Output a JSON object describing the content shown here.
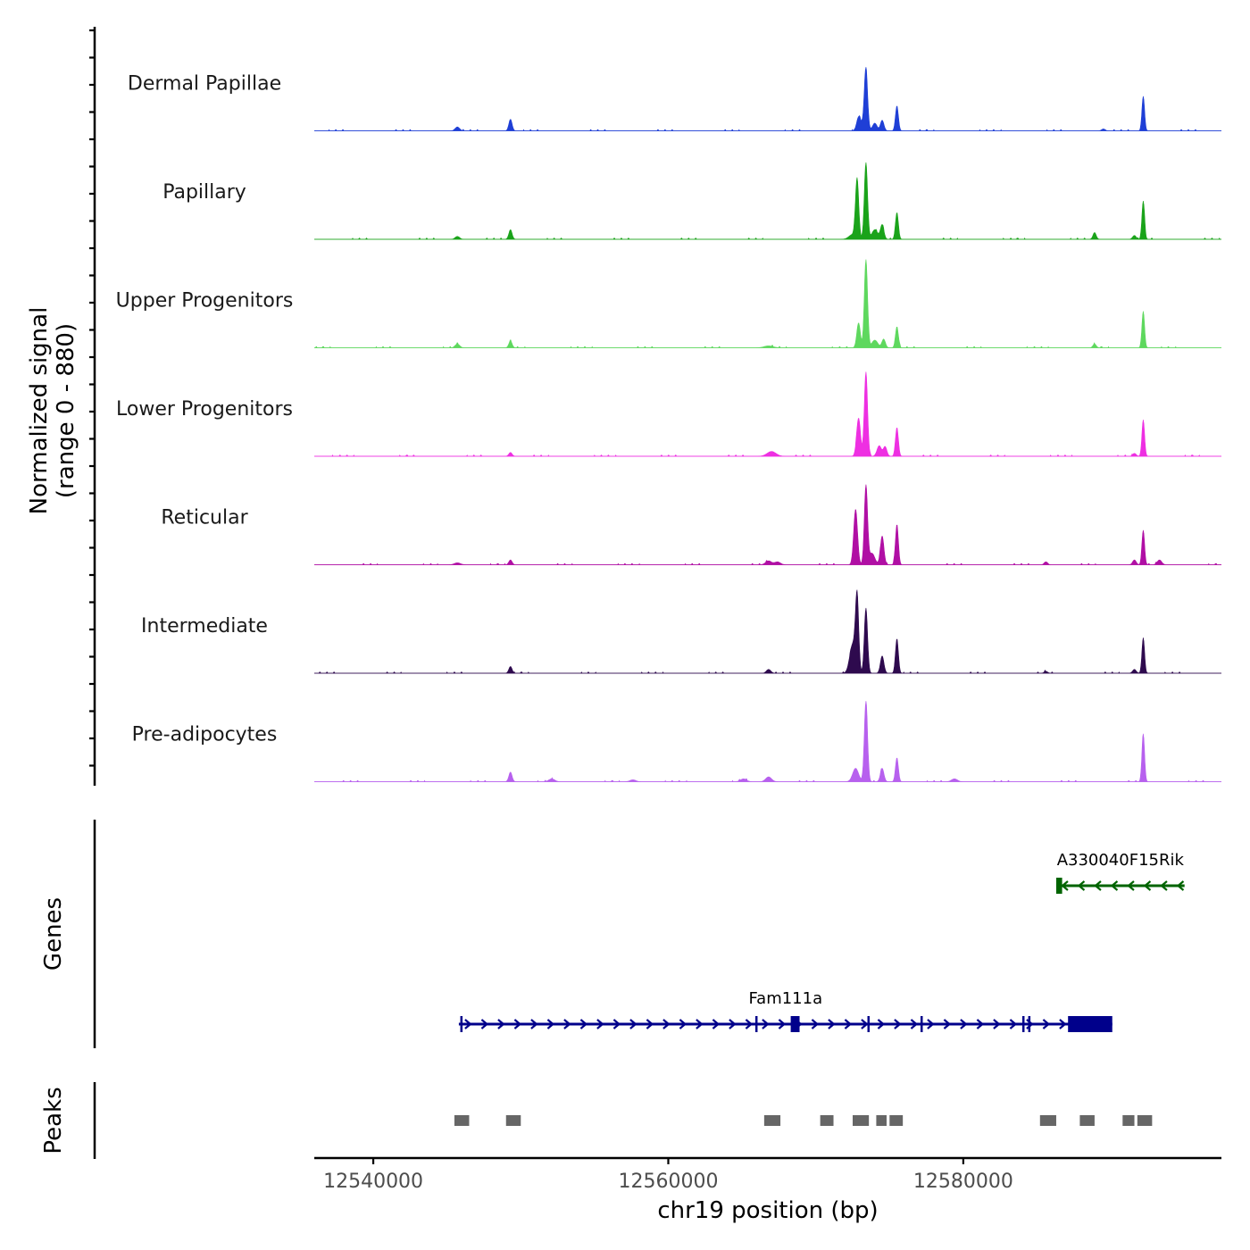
{
  "chart_data": {
    "type": "coverage",
    "y_axis_title_line1": "Normalized signal",
    "y_axis_title_line2": "(range 0 - 880)",
    "y_range": [
      0,
      880
    ],
    "x_axis_title": "chr19 position (bp)",
    "x_range": [
      12536000,
      12597500
    ],
    "x_ticks": [
      12540000,
      12560000,
      12580000
    ],
    "x_tick_labels": [
      "12540000",
      "12560000",
      "12580000"
    ],
    "tracks": [
      {
        "name": "Dermal Papillae",
        "color": "#1f3fd6",
        "peaks": [
          [
            12545700,
            4,
            150
          ],
          [
            12549300,
            12,
            110
          ],
          [
            12572900,
            12,
            130
          ],
          [
            12573200,
            6,
            250
          ],
          [
            12573400,
            62,
            110
          ],
          [
            12574000,
            8,
            150
          ],
          [
            12574500,
            11,
            120
          ],
          [
            12575500,
            26,
            100
          ],
          [
            12592200,
            36,
            90
          ],
          [
            12589500,
            2,
            120
          ]
        ]
      },
      {
        "name": "Papillary",
        "color": "#1aa31a",
        "peaks": [
          [
            12545700,
            3,
            150
          ],
          [
            12549300,
            10,
            110
          ],
          [
            12572500,
            5,
            250
          ],
          [
            12572800,
            62,
            110
          ],
          [
            12573400,
            80,
            110
          ],
          [
            12574000,
            10,
            200
          ],
          [
            12574500,
            15,
            120
          ],
          [
            12575500,
            28,
            100
          ],
          [
            12588900,
            7,
            110
          ],
          [
            12591600,
            4,
            120
          ],
          [
            12592200,
            40,
            90
          ]
        ]
      },
      {
        "name": "Upper Progenitors",
        "color": "#5ed85e",
        "peaks": [
          [
            12545700,
            4,
            150
          ],
          [
            12549300,
            7,
            110
          ],
          [
            12566800,
            2,
            300
          ],
          [
            12572900,
            26,
            120
          ],
          [
            12573400,
            92,
            110
          ],
          [
            12574000,
            8,
            200
          ],
          [
            12574600,
            9,
            120
          ],
          [
            12575500,
            22,
            100
          ],
          [
            12588900,
            4,
            110
          ],
          [
            12592200,
            38,
            90
          ]
        ]
      },
      {
        "name": "Lower Progenitors",
        "color": "#ee2fe2",
        "peaks": [
          [
            12549300,
            4,
            110
          ],
          [
            12567000,
            5,
            300
          ],
          [
            12572900,
            40,
            130
          ],
          [
            12573400,
            88,
            110
          ],
          [
            12574300,
            11,
            150
          ],
          [
            12574700,
            10,
            120
          ],
          [
            12575500,
            30,
            100
          ],
          [
            12592200,
            38,
            90
          ],
          [
            12591600,
            3,
            120
          ]
        ]
      },
      {
        "name": "Reticular",
        "color": "#b00fa4",
        "peaks": [
          [
            12545700,
            2,
            200
          ],
          [
            12549300,
            5,
            110
          ],
          [
            12566800,
            4,
            200
          ],
          [
            12567400,
            3,
            200
          ],
          [
            12572700,
            58,
            130
          ],
          [
            12573400,
            82,
            110
          ],
          [
            12573800,
            12,
            200
          ],
          [
            12574500,
            30,
            120
          ],
          [
            12575500,
            42,
            100
          ],
          [
            12585600,
            3,
            120
          ],
          [
            12591600,
            5,
            120
          ],
          [
            12592200,
            36,
            90
          ],
          [
            12593300,
            5,
            150
          ]
        ]
      },
      {
        "name": "Intermediate",
        "color": "#2e0a4e",
        "peaks": [
          [
            12549300,
            7,
            110
          ],
          [
            12566800,
            4,
            150
          ],
          [
            12572500,
            30,
            200
          ],
          [
            12572800,
            76,
            110
          ],
          [
            12573400,
            68,
            110
          ],
          [
            12574500,
            18,
            120
          ],
          [
            12575500,
            36,
            100
          ],
          [
            12585600,
            2,
            120
          ],
          [
            12591600,
            4,
            120
          ],
          [
            12592200,
            37,
            90
          ]
        ]
      },
      {
        "name": "Pre-adipocytes",
        "color": "#b760ee",
        "peaks": [
          [
            12549300,
            10,
            110
          ],
          [
            12552100,
            3,
            200
          ],
          [
            12557600,
            2,
            200
          ],
          [
            12565100,
            3,
            200
          ],
          [
            12566800,
            5,
            200
          ],
          [
            12572700,
            14,
            200
          ],
          [
            12573400,
            84,
            110
          ],
          [
            12574500,
            14,
            120
          ],
          [
            12575500,
            25,
            100
          ],
          [
            12579400,
            3,
            200
          ],
          [
            12592200,
            50,
            90
          ]
        ]
      }
    ],
    "genes_title": "Genes",
    "genes": [
      {
        "name": "A330040F15Rik",
        "strand": "-",
        "color": "#006400",
        "start": 12586300,
        "end": 12595000,
        "exons": [
          [
            12586300,
            12586700
          ]
        ]
      },
      {
        "name": "Fam111a",
        "strand": "+",
        "color": "#00008b",
        "start": 12545800,
        "end": 12590100,
        "exons": [
          [
            12545900,
            12546000
          ],
          [
            12565900,
            12565950
          ],
          [
            12568300,
            12568900
          ],
          [
            12573500,
            12573550
          ],
          [
            12577100,
            12577150
          ],
          [
            12584000,
            12584080
          ],
          [
            12584400,
            12584450
          ],
          [
            12587100,
            12590100
          ]
        ]
      }
    ],
    "peaks_title": "Peaks",
    "peak_regions": [
      [
        12545500,
        12546500
      ],
      [
        12549000,
        12550000
      ],
      [
        12566500,
        12567600
      ],
      [
        12570300,
        12571200
      ],
      [
        12572500,
        12573600
      ],
      [
        12574100,
        12574800
      ],
      [
        12575000,
        12575900
      ],
      [
        12585200,
        12586300
      ],
      [
        12587900,
        12588900
      ],
      [
        12590800,
        12591600
      ],
      [
        12591800,
        12592800
      ]
    ]
  }
}
